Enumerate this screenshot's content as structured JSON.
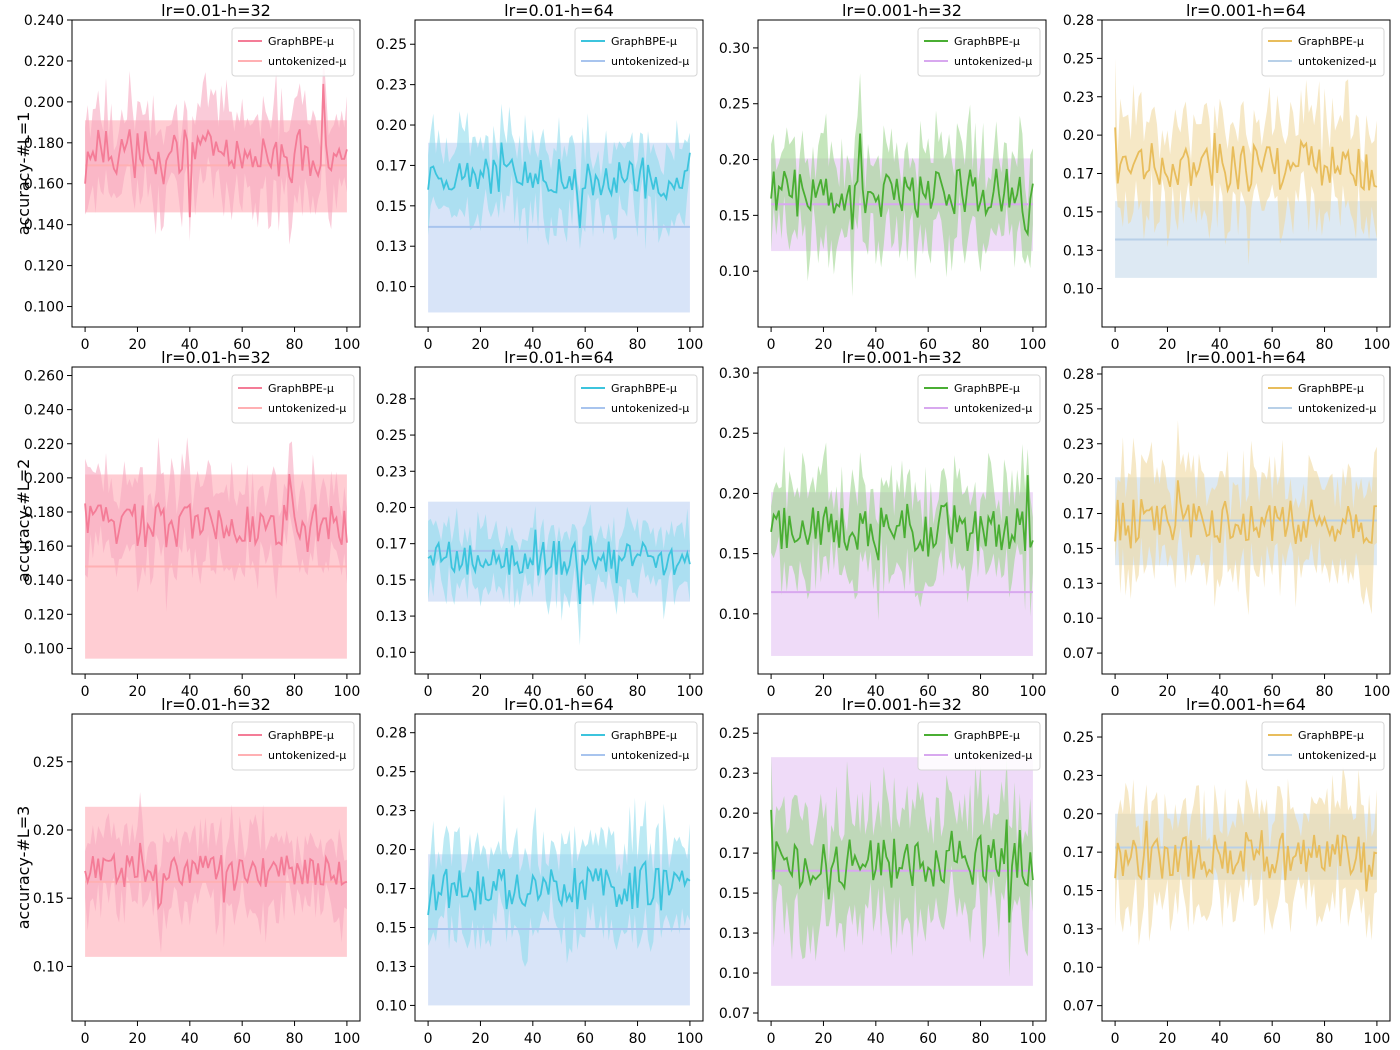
{
  "figure": {
    "row_ylabels": [
      "accuracy-#L=1",
      "accuracy-#L=2",
      "accuracy-#L=3"
    ],
    "series_labels": [
      "GraphBPE-μ",
      "untokenized-μ"
    ]
  },
  "chart_data": [
    {
      "type": "line",
      "row": 0,
      "col": 0,
      "title": "lr=0.01-h=32",
      "ylabel": "accuracy-#L=1",
      "xlim": [
        -5,
        105
      ],
      "ylim": [
        0.09,
        0.24
      ],
      "yticks": [
        0.1,
        0.12,
        0.14,
        0.16,
        0.18,
        0.2,
        0.22,
        0.24
      ],
      "xticks": [
        0,
        20,
        40,
        60,
        80,
        100
      ],
      "legend": "top-right",
      "colors": {
        "line": "#f47c97",
        "band": "#f7a8bf",
        "base": "#ffb0b3",
        "base_band": "#ffb8c0"
      },
      "graphbpe_mean_start": 0.16,
      "graphbpe_center": 0.175,
      "graphbpe_noise": 0.012,
      "graphbpe_spread": 0.02,
      "untokenized_mean": 0.169,
      "untokenized_band": [
        0.146,
        0.191
      ]
    },
    {
      "type": "line",
      "row": 0,
      "col": 1,
      "title": "lr=0.01-h=64",
      "ylabel": "",
      "xlim": [
        -5,
        105
      ],
      "ylim": [
        0.075,
        0.265
      ],
      "yticks": [
        0.1,
        0.125,
        0.15,
        0.175,
        0.2,
        0.225,
        0.25
      ],
      "xticks": [
        0,
        20,
        40,
        60,
        80,
        100
      ],
      "legend": "top-right",
      "colors": {
        "line": "#3cc4dd",
        "band": "#8fdcec",
        "base": "#a8c4ee",
        "base_band": "#c8d8f5"
      },
      "graphbpe_mean_start": 0.16,
      "graphbpe_center": 0.168,
      "graphbpe_noise": 0.012,
      "graphbpe_spread": 0.022,
      "untokenized_mean": 0.137,
      "untokenized_band": [
        0.084,
        0.189
      ]
    },
    {
      "type": "line",
      "row": 0,
      "col": 2,
      "title": "lr=0.001-h=32",
      "ylabel": "",
      "xlim": [
        -5,
        105
      ],
      "ylim": [
        0.05,
        0.325
      ],
      "yticks": [
        0.1,
        0.15,
        0.2,
        0.25,
        0.3
      ],
      "xticks": [
        0,
        20,
        40,
        60,
        80,
        100
      ],
      "legend": "top-right",
      "colors": {
        "line": "#4aae33",
        "band": "#9fd58f",
        "base": "#d8a8ef",
        "base_band": "#e8ccf5"
      },
      "graphbpe_mean_start": 0.165,
      "graphbpe_center": 0.17,
      "graphbpe_noise": 0.022,
      "graphbpe_spread": 0.04,
      "untokenized_mean": 0.16,
      "untokenized_band": [
        0.118,
        0.201
      ]
    },
    {
      "type": "line",
      "row": 0,
      "col": 3,
      "title": "lr=0.001-h=64",
      "ylabel": "",
      "xlim": [
        -5,
        105
      ],
      "ylim": [
        0.075,
        0.275
      ],
      "yticks": [
        0.1,
        0.125,
        0.15,
        0.175,
        0.2,
        0.225,
        0.25,
        0.275
      ],
      "xticks": [
        0,
        20,
        40,
        60,
        80,
        100
      ],
      "legend": "top-right",
      "colors": {
        "line": "#e8bd5c",
        "band": "#f0d9a0",
        "base": "#b8d0e8",
        "base_band": "#cfe0ee"
      },
      "graphbpe_mean_start": 0.205,
      "graphbpe_center": 0.18,
      "graphbpe_noise": 0.016,
      "graphbpe_spread": 0.03,
      "untokenized_mean": 0.132,
      "untokenized_band": [
        0.107,
        0.157
      ]
    },
    {
      "type": "line",
      "row": 1,
      "col": 0,
      "title": "lr=0.01-h=32",
      "ylabel": "accuracy-#L=2",
      "xlim": [
        -5,
        105
      ],
      "ylim": [
        0.085,
        0.265
      ],
      "yticks": [
        0.1,
        0.12,
        0.14,
        0.16,
        0.18,
        0.2,
        0.22,
        0.24,
        0.26
      ],
      "xticks": [
        0,
        20,
        40,
        60,
        80,
        100
      ],
      "legend": "top-right",
      "colors": {
        "line": "#f47c97",
        "band": "#f7a8bf",
        "base": "#ffb0b3",
        "base_band": "#ffb8c0"
      },
      "graphbpe_mean_start": 0.185,
      "graphbpe_center": 0.172,
      "graphbpe_noise": 0.014,
      "graphbpe_spread": 0.026,
      "untokenized_mean": 0.148,
      "untokenized_band": [
        0.094,
        0.202
      ]
    },
    {
      "type": "line",
      "row": 1,
      "col": 1,
      "title": "lr=0.01-h=64",
      "ylabel": "",
      "xlim": [
        -5,
        105
      ],
      "ylim": [
        0.085,
        0.297
      ],
      "yticks": [
        0.1,
        0.125,
        0.15,
        0.175,
        0.2,
        0.225,
        0.25,
        0.275
      ],
      "xticks": [
        0,
        20,
        40,
        60,
        80,
        100
      ],
      "legend": "top-right",
      "colors": {
        "line": "#3cc4dd",
        "band": "#8fdcec",
        "base": "#a8c4ee",
        "base_band": "#c8d8f5"
      },
      "graphbpe_mean_start": 0.165,
      "graphbpe_center": 0.165,
      "graphbpe_noise": 0.012,
      "graphbpe_spread": 0.02,
      "untokenized_mean": 0.17,
      "untokenized_band": [
        0.135,
        0.204
      ]
    },
    {
      "type": "line",
      "row": 1,
      "col": 2,
      "title": "lr=0.001-h=32",
      "ylabel": "",
      "xlim": [
        -5,
        105
      ],
      "ylim": [
        0.05,
        0.305
      ],
      "yticks": [
        0.1,
        0.15,
        0.2,
        0.25,
        0.3
      ],
      "xticks": [
        0,
        20,
        40,
        60,
        80,
        100
      ],
      "legend": "top-right",
      "colors": {
        "line": "#4aae33",
        "band": "#9fd58f",
        "base": "#d8a8ef",
        "base_band": "#e8ccf5"
      },
      "graphbpe_mean_start": 0.168,
      "graphbpe_center": 0.172,
      "graphbpe_noise": 0.02,
      "graphbpe_spread": 0.036,
      "untokenized_mean": 0.118,
      "untokenized_band": [
        0.065,
        0.201
      ]
    },
    {
      "type": "line",
      "row": 1,
      "col": 3,
      "title": "lr=0.001-h=64",
      "ylabel": "",
      "xlim": [
        -5,
        105
      ],
      "ylim": [
        0.06,
        0.28
      ],
      "yticks": [
        0.075,
        0.1,
        0.125,
        0.15,
        0.175,
        0.2,
        0.225,
        0.25,
        0.275
      ],
      "xticks": [
        0,
        20,
        40,
        60,
        80,
        100
      ],
      "legend": "top-right",
      "colors": {
        "line": "#e8bd5c",
        "band": "#f0d9a0",
        "base": "#b8d0e8",
        "base_band": "#cfe0ee"
      },
      "graphbpe_mean_start": 0.155,
      "graphbpe_center": 0.17,
      "graphbpe_noise": 0.016,
      "graphbpe_spread": 0.032,
      "untokenized_mean": 0.17,
      "untokenized_band": [
        0.138,
        0.201
      ]
    },
    {
      "type": "line",
      "row": 2,
      "col": 0,
      "title": "lr=0.01-h=32",
      "ylabel": "accuracy-#L=3",
      "xlim": [
        -5,
        105
      ],
      "ylim": [
        0.06,
        0.285
      ],
      "yticks": [
        0.1,
        0.15,
        0.2,
        0.25
      ],
      "xticks": [
        0,
        20,
        40,
        60,
        80,
        100
      ],
      "legend": "top-right",
      "colors": {
        "line": "#f47c97",
        "band": "#f7a8bf",
        "base": "#ffb0b3",
        "base_band": "#ffb8c0"
      },
      "graphbpe_mean_start": 0.17,
      "graphbpe_center": 0.17,
      "graphbpe_noise": 0.012,
      "graphbpe_spread": 0.026,
      "untokenized_mean": 0.162,
      "untokenized_band": [
        0.107,
        0.217
      ]
    },
    {
      "type": "line",
      "row": 2,
      "col": 1,
      "title": "lr=0.01-h=64",
      "ylabel": "",
      "xlim": [
        -5,
        105
      ],
      "ylim": [
        0.09,
        0.287
      ],
      "yticks": [
        0.1,
        0.125,
        0.15,
        0.175,
        0.2,
        0.225,
        0.25,
        0.275
      ],
      "xticks": [
        0,
        20,
        40,
        60,
        80,
        100
      ],
      "legend": "top-right",
      "colors": {
        "line": "#3cc4dd",
        "band": "#8fdcec",
        "base": "#a8c4ee",
        "base_band": "#c8d8f5"
      },
      "graphbpe_mean_start": 0.158,
      "graphbpe_center": 0.175,
      "graphbpe_noise": 0.014,
      "graphbpe_spread": 0.028,
      "untokenized_mean": 0.149,
      "untokenized_band": [
        0.1,
        0.197
      ]
    },
    {
      "type": "line",
      "row": 2,
      "col": 2,
      "title": "lr=0.001-h=32",
      "ylabel": "",
      "xlim": [
        -5,
        105
      ],
      "ylim": [
        0.07,
        0.262
      ],
      "yticks": [
        0.075,
        0.1,
        0.125,
        0.15,
        0.175,
        0.2,
        0.225,
        0.25
      ],
      "xticks": [
        0,
        20,
        40,
        60,
        80,
        100
      ],
      "legend": "top-right",
      "colors": {
        "line": "#4aae33",
        "band": "#9fd58f",
        "base": "#d8a8ef",
        "base_band": "#e8ccf5"
      },
      "graphbpe_mean_start": 0.202,
      "graphbpe_center": 0.168,
      "graphbpe_noise": 0.016,
      "graphbpe_spread": 0.036,
      "untokenized_mean": 0.164,
      "untokenized_band": [
        0.092,
        0.235
      ]
    },
    {
      "type": "line",
      "row": 2,
      "col": 3,
      "title": "lr=0.001-h=64",
      "ylabel": "",
      "xlim": [
        -5,
        105
      ],
      "ylim": [
        0.065,
        0.265
      ],
      "yticks": [
        0.075,
        0.1,
        0.125,
        0.15,
        0.175,
        0.2,
        0.225,
        0.25
      ],
      "xticks": [
        0,
        20,
        40,
        60,
        80,
        100
      ],
      "legend": "top-right",
      "colors": {
        "line": "#e8bd5c",
        "band": "#f0d9a0",
        "base": "#b8d0e8",
        "base_band": "#cfe0ee"
      },
      "graphbpe_mean_start": 0.158,
      "graphbpe_center": 0.172,
      "graphbpe_noise": 0.016,
      "graphbpe_spread": 0.03,
      "untokenized_mean": 0.178,
      "untokenized_band": [
        0.157,
        0.2
      ]
    }
  ]
}
